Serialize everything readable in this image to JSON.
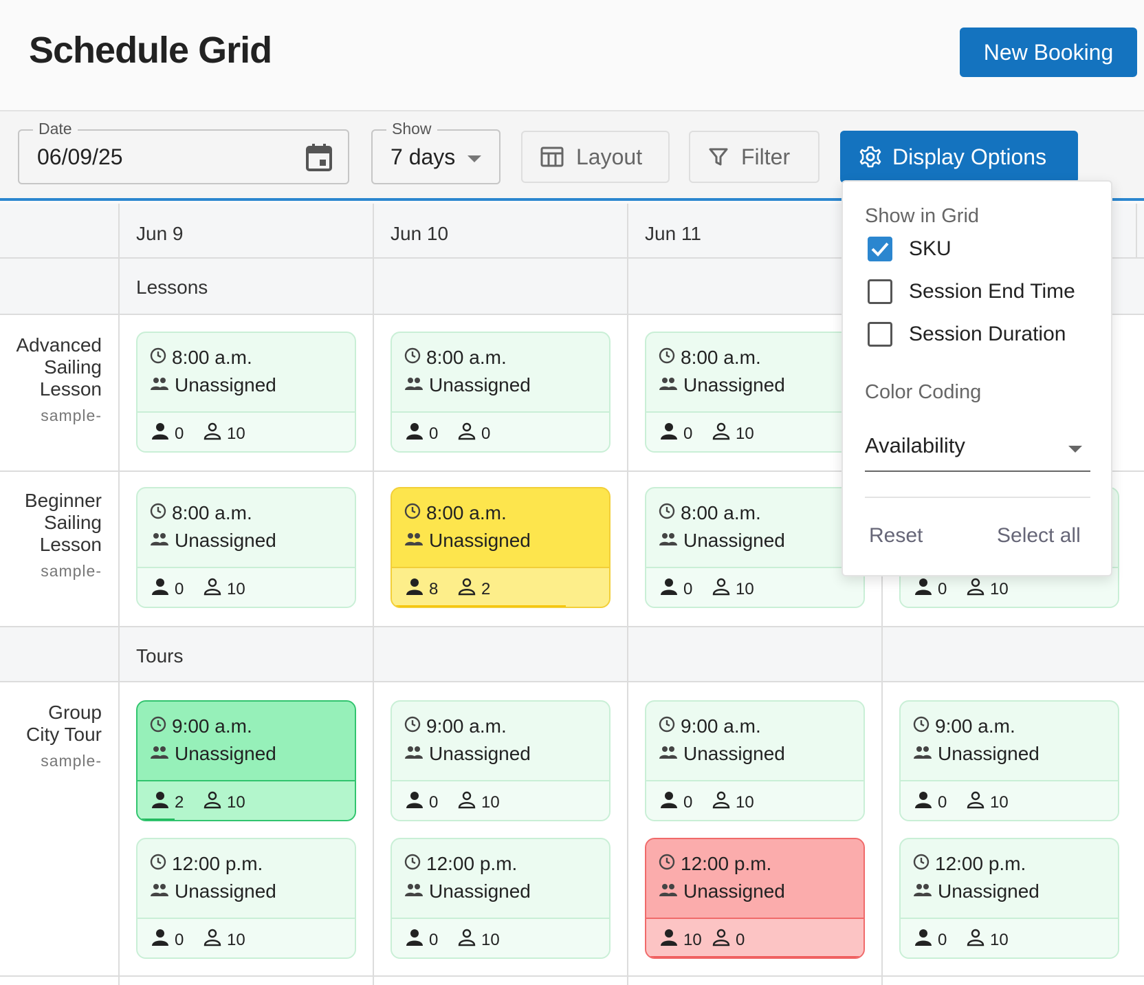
{
  "header": {
    "title": "Schedule Grid",
    "new_booking_label": "New Booking"
  },
  "toolbar": {
    "date": {
      "label": "Date",
      "value": "06/09/25"
    },
    "show": {
      "label": "Show",
      "value": "7 days"
    },
    "layout_label": "Layout",
    "filter_label": "Filter",
    "display_label": "Display Options"
  },
  "grid": {
    "days": [
      "Jun 9",
      "Jun 10",
      "Jun 11"
    ],
    "sections": [
      "Lessons",
      "Tours"
    ],
    "rows": [
      {
        "name_lines": [
          "Advanced",
          "Sailing",
          "Lesson"
        ],
        "sku": "sample-"
      },
      {
        "name_lines": [
          "Beginner",
          "Sailing",
          "Lesson"
        ],
        "sku": "sample-"
      },
      {
        "name_lines": [
          "Group",
          "City Tour"
        ],
        "sku": "sample-"
      }
    ],
    "cards": [
      {
        "time": "8:00 a.m.",
        "guide": "Unassigned",
        "booked": "0",
        "available": "10",
        "color": "default",
        "fill": 0
      },
      {
        "time": "8:00 a.m.",
        "guide": "Unassigned",
        "booked": "0",
        "available": "0",
        "color": "default",
        "fill": 0
      },
      {
        "time": "8:00 a.m.",
        "guide": "Unassigned",
        "booked": "0",
        "available": "10",
        "color": "default",
        "fill": 0
      },
      {
        "time": "8:00 a.m.",
        "guide": "Unassigned",
        "booked": "0",
        "available": "10",
        "color": "default",
        "fill": 0
      },
      {
        "time": "8:00 a.m.",
        "guide": "Unassigned",
        "booked": "8",
        "available": "2",
        "color": "yellow",
        "fill": 0.8
      },
      {
        "time": "8:00 a.m.",
        "guide": "Unassigned",
        "booked": "0",
        "available": "10",
        "color": "default",
        "fill": 0
      },
      {
        "time": "",
        "guide": "",
        "booked": "0",
        "available": "10",
        "color": "default",
        "fill": 0
      },
      {
        "time": "9:00 a.m.",
        "guide": "Unassigned",
        "booked": "2",
        "available": "10",
        "color": "green",
        "fill": 0.17
      },
      {
        "time": "9:00 a.m.",
        "guide": "Unassigned",
        "booked": "0",
        "available": "10",
        "color": "default",
        "fill": 0
      },
      {
        "time": "9:00 a.m.",
        "guide": "Unassigned",
        "booked": "0",
        "available": "10",
        "color": "default",
        "fill": 0
      },
      {
        "time": "9:00 a.m.",
        "guide": "Unassigned",
        "booked": "0",
        "available": "10",
        "color": "default",
        "fill": 0
      },
      {
        "time": "12:00 p.m.",
        "guide": "Unassigned",
        "booked": "0",
        "available": "10",
        "color": "default",
        "fill": 0
      },
      {
        "time": "12:00 p.m.",
        "guide": "Unassigned",
        "booked": "0",
        "available": "10",
        "color": "default",
        "fill": 0
      },
      {
        "time": "12:00 p.m.",
        "guide": "Unassigned",
        "booked": "10",
        "available": "0",
        "color": "red",
        "fill": 1.0
      },
      {
        "time": "12:00 p.m.",
        "guide": "Unassigned",
        "booked": "0",
        "available": "10",
        "color": "default",
        "fill": 0
      }
    ]
  },
  "display_options": {
    "show_in_grid_label": "Show in Grid",
    "options": [
      {
        "label": "SKU",
        "checked": true
      },
      {
        "label": "Session End Time",
        "checked": false
      },
      {
        "label": "Session Duration",
        "checked": false
      }
    ],
    "color_coding_label": "Color Coding",
    "color_coding_value": "Availability",
    "reset_label": "Reset",
    "select_all_label": "Select all"
  },
  "colors": {
    "accent": "#1473bf",
    "yellow": "#fde34c",
    "green": "#8ff0b4",
    "red": "#fba9a9",
    "default": "#ecfbf1"
  }
}
